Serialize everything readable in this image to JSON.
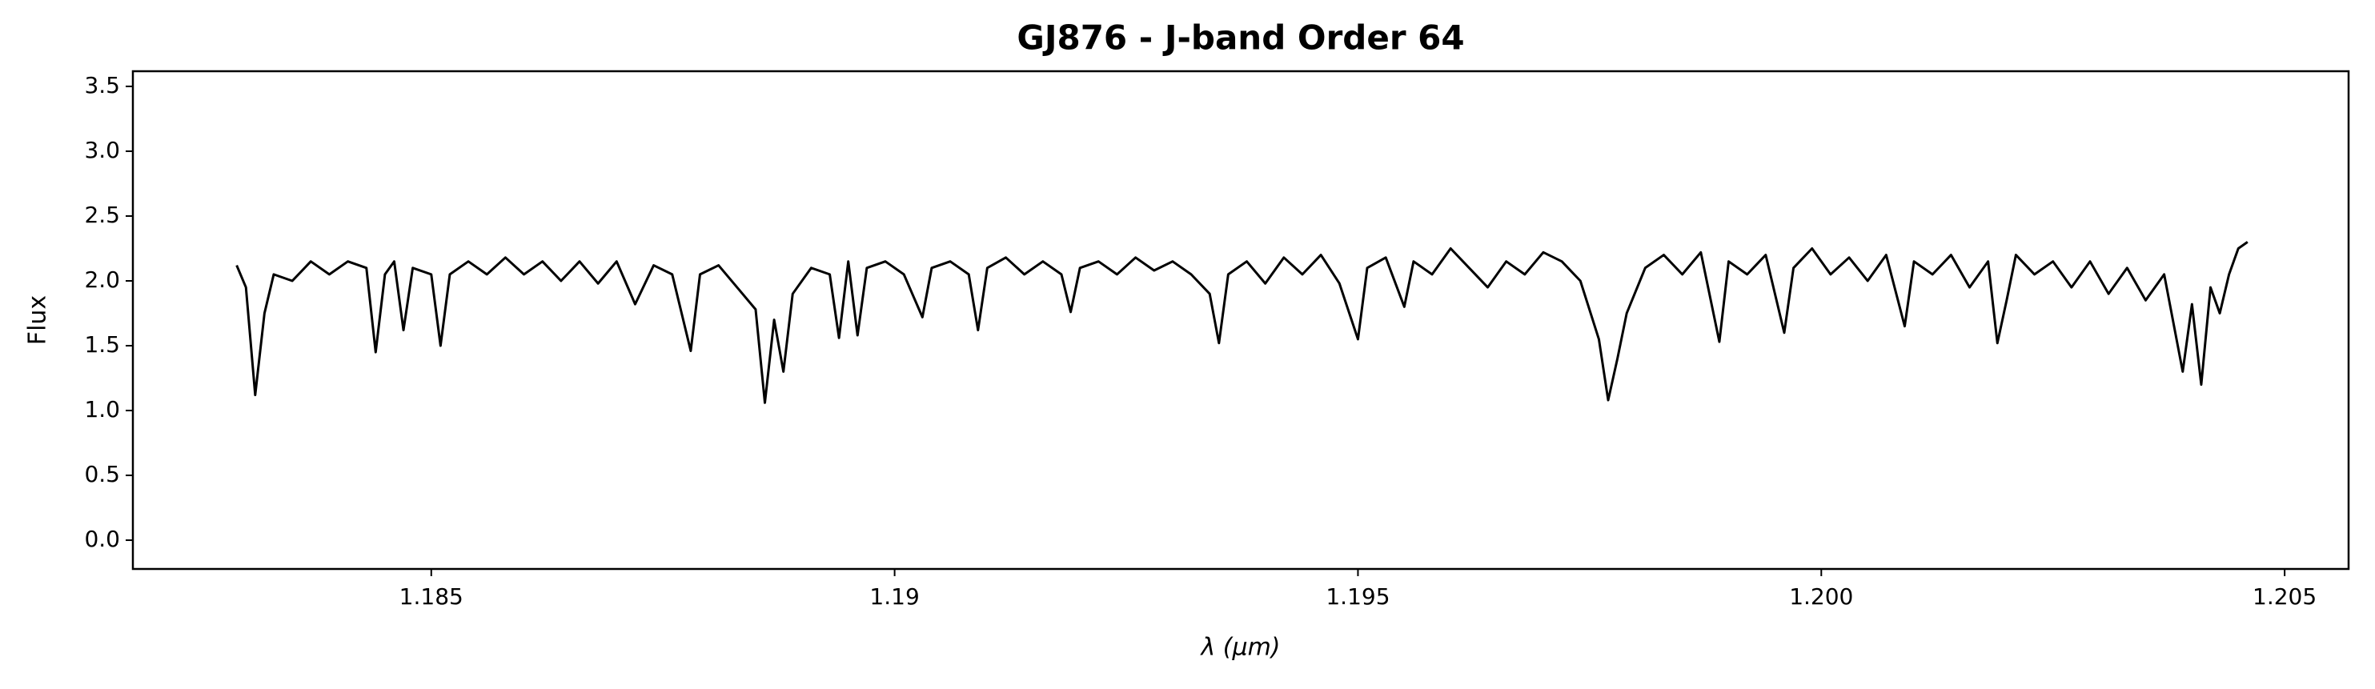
{
  "chart_data": {
    "type": "line",
    "title": "GJ876 - J-band Order 64",
    "xlabel": "λ (μm)",
    "ylabel": "Flux",
    "xlim": [
      1.18178,
      1.20569
    ],
    "ylim": [
      -0.222,
      3.617
    ],
    "xticks": [
      1.185,
      1.19,
      1.195,
      {
        "value": 1.2,
        "label": "1.200"
      },
      1.205
    ],
    "yticks": [
      {
        "value": 0,
        "label": "0.0"
      },
      0.5,
      {
        "value": 1,
        "label": "1.0"
      },
      1.5,
      {
        "value": 2,
        "label": "2.0"
      },
      2.5,
      {
        "value": 3,
        "label": "3.0"
      },
      3.5
    ],
    "series": [
      {
        "color": "#000000",
        "x": [
          1.1829,
          1.183,
          1.1831,
          1.1832,
          1.1833,
          1.1835,
          1.1837,
          1.1839,
          1.1841,
          1.1843,
          1.1844,
          1.1845,
          1.1846,
          1.1847,
          1.1848,
          1.185,
          1.1851,
          1.1852,
          1.1854,
          1.1856,
          1.1858,
          1.186,
          1.1862,
          1.1864,
          1.1866,
          1.1868,
          1.187,
          1.1872,
          1.1874,
          1.1876,
          1.1878,
          1.1879,
          1.1881,
          1.1883,
          1.1885,
          1.1886,
          1.1887,
          1.1888,
          1.1889,
          1.1891,
          1.1893,
          1.1894,
          1.1895,
          1.1896,
          1.1897,
          1.1899,
          1.1901,
          1.1903,
          1.1904,
          1.1906,
          1.1908,
          1.1909,
          1.191,
          1.1912,
          1.1914,
          1.1916,
          1.1918,
          1.1919,
          1.192,
          1.1922,
          1.1924,
          1.1926,
          1.1928,
          1.193,
          1.1932,
          1.1934,
          1.1935,
          1.1936,
          1.1938,
          1.194,
          1.1942,
          1.1944,
          1.1946,
          1.1948,
          1.195,
          1.1951,
          1.1953,
          1.1955,
          1.1956,
          1.1958,
          1.196,
          1.1962,
          1.1964,
          1.1966,
          1.1968,
          1.197,
          1.1972,
          1.1974,
          1.1976,
          1.1977,
          1.1978,
          1.1979,
          1.1981,
          1.1983,
          1.1985,
          1.1987,
          1.1989,
          1.199,
          1.1992,
          1.1994,
          1.1996,
          1.1997,
          1.1999,
          1.2001,
          1.2003,
          1.2005,
          1.2007,
          1.2009,
          1.201,
          1.2012,
          1.2014,
          1.2016,
          1.2018,
          1.2019,
          1.202,
          1.2021,
          1.2023,
          1.2025,
          1.2027,
          1.2029,
          1.2031,
          1.2033,
          1.2035,
          1.2037,
          1.2039,
          1.204,
          1.2041,
          1.2042,
          1.2043,
          1.2044,
          1.2045,
          1.2046
        ],
        "values": [
          2.12,
          1.95,
          1.12,
          1.75,
          2.05,
          2.0,
          2.15,
          2.05,
          2.15,
          2.1,
          1.45,
          2.05,
          2.15,
          1.62,
          2.1,
          2.05,
          1.5,
          2.05,
          2.15,
          2.05,
          2.18,
          2.05,
          2.15,
          2.0,
          2.15,
          1.98,
          2.15,
          1.82,
          2.12,
          2.05,
          1.46,
          2.05,
          2.12,
          1.95,
          1.78,
          1.06,
          1.7,
          1.3,
          1.9,
          2.1,
          2.05,
          1.56,
          2.15,
          1.58,
          2.1,
          2.15,
          2.05,
          1.72,
          2.1,
          2.15,
          2.05,
          1.62,
          2.1,
          2.18,
          2.05,
          2.15,
          2.05,
          1.76,
          2.1,
          2.15,
          2.05,
          2.18,
          2.08,
          2.15,
          2.05,
          1.9,
          1.52,
          2.05,
          2.15,
          1.98,
          2.18,
          2.05,
          2.2,
          1.98,
          1.55,
          2.1,
          2.18,
          1.8,
          2.15,
          2.05,
          2.25,
          2.1,
          1.95,
          2.15,
          2.05,
          2.22,
          2.15,
          2.0,
          1.55,
          1.08,
          1.4,
          1.75,
          2.1,
          2.2,
          2.05,
          2.22,
          1.53,
          2.15,
          2.05,
          2.2,
          1.6,
          2.1,
          2.25,
          2.05,
          2.18,
          2.0,
          2.2,
          1.65,
          2.15,
          2.05,
          2.2,
          1.95,
          2.15,
          1.52,
          1.85,
          2.2,
          2.05,
          2.15,
          1.95,
          2.15,
          1.9,
          2.1,
          1.85,
          2.05,
          1.3,
          1.82,
          1.2,
          1.95,
          1.75,
          2.05,
          2.25,
          2.3
        ]
      }
    ]
  }
}
